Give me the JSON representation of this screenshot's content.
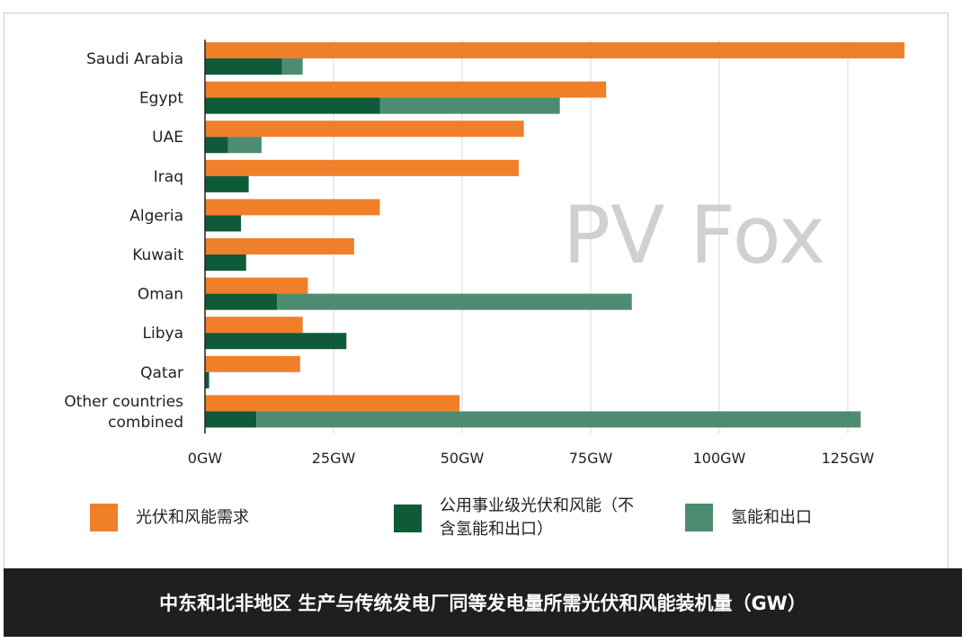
{
  "chart_data": {
    "type": "bar",
    "orientation": "horizontal",
    "categories": [
      "Saudi Arabia",
      "Egypt",
      "UAE",
      "Iraq",
      "Algeria",
      "Kuwait",
      "Oman",
      "Libya",
      "Qatar",
      "Other countries combined"
    ],
    "series": [
      {
        "name": "光伏和风能需求",
        "color": "#f07f2a",
        "values": [
          136,
          78,
          62,
          61,
          34,
          29,
          20,
          19,
          18.5,
          49.5
        ]
      },
      {
        "name": "公用事业级光伏和风能（不含氢能和出口）",
        "color": "#0f5a38",
        "values": [
          15,
          34,
          4.5,
          8.5,
          7,
          8,
          14,
          27.5,
          0.8,
          10
        ]
      },
      {
        "name": "氢能和出口",
        "color": "#4e8c72",
        "values": [
          4,
          35,
          6.5,
          0,
          0,
          0,
          69,
          0,
          0,
          117.5
        ]
      }
    ],
    "stacked_series": [
      "公用事业级光伏和风能（不含氢能和出口）",
      "氢能和出口"
    ],
    "xticks": [
      "0GW",
      "25GW",
      "50GW",
      "75GW",
      "100GW",
      "125GW"
    ],
    "xtick_values": [
      0,
      25,
      50,
      75,
      100,
      125
    ],
    "xlim": [
      0,
      138
    ],
    "grid": "vertical",
    "legend_position": "bottom",
    "title": "中东和北非地区 生产与传统发电厂同等发电量所需光伏和风能装机量（GW）"
  },
  "category_labels": [
    [
      "Saudi Arabia"
    ],
    [
      "Egypt"
    ],
    [
      "UAE"
    ],
    [
      "Iraq"
    ],
    [
      "Algeria"
    ],
    [
      "Kuwait"
    ],
    [
      "Oman"
    ],
    [
      "Libya"
    ],
    [
      "Qatar"
    ],
    [
      "Other countries",
      "combined"
    ]
  ],
  "watermark": "PV Fox",
  "legend": {
    "item1": "光伏和风能需求",
    "item2_line1": "公用事业级光伏和风能（不",
    "item2_line2": "含氢能和出口）",
    "item3": "氢能和出口"
  },
  "footer_title": "中东和北非地区 生产与传统发电厂同等发电量所需光伏和风能装机量（GW）"
}
